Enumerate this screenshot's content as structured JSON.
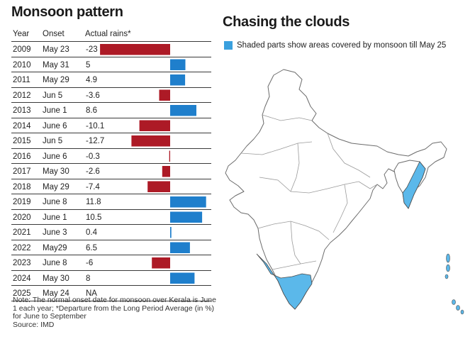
{
  "left_title": "Monsoon pattern",
  "right_title": "Chasing the clouds",
  "legend_text": "Shaded parts show areas covered by monsoon till May 25",
  "colors": {
    "positive": "#1f7fcc",
    "negative": "#ad1a26",
    "covered": "#5bb8ea"
  },
  "headers": {
    "year": "Year",
    "onset": "Onset",
    "rain": "Actual rains*"
  },
  "note": "Note: The normal onset date for monsoon over Kerala is June 1 each year; *Departure from the Long Period Average (in %) for June to September",
  "source": "Source: IMD",
  "chart_data": {
    "type": "bar",
    "orientation": "horizontal",
    "categories": [
      "2009",
      "2010",
      "2011",
      "2012",
      "2013",
      "2014",
      "2015",
      "2016",
      "2017",
      "2018",
      "2019",
      "2020",
      "2021",
      "2022",
      "2023",
      "2024",
      "2025"
    ],
    "onset": [
      "May 23",
      "May 31",
      "May 29",
      "Jun 5",
      "June 1",
      "June 6",
      "Jun 5",
      "June 6",
      "May 30",
      "May 29",
      "June 8",
      "June 1",
      "June 3",
      "May29",
      "June 8",
      "May 30",
      "May 24"
    ],
    "labels": [
      "-23",
      "5",
      "4.9",
      "-3.6",
      "8.6",
      "-10.1",
      "-12.7",
      "-0.3",
      "-2.6",
      "-7.4",
      "11.8",
      "10.5",
      "0.4",
      "6.5",
      "-6",
      "8",
      "NA"
    ],
    "values": [
      -23,
      5,
      4.9,
      -3.6,
      8.6,
      -10.1,
      -12.7,
      -0.3,
      -2.6,
      -7.4,
      11.8,
      10.5,
      0.4,
      6.5,
      -6,
      8,
      null
    ],
    "ylabel": "Actual rains*"
  }
}
